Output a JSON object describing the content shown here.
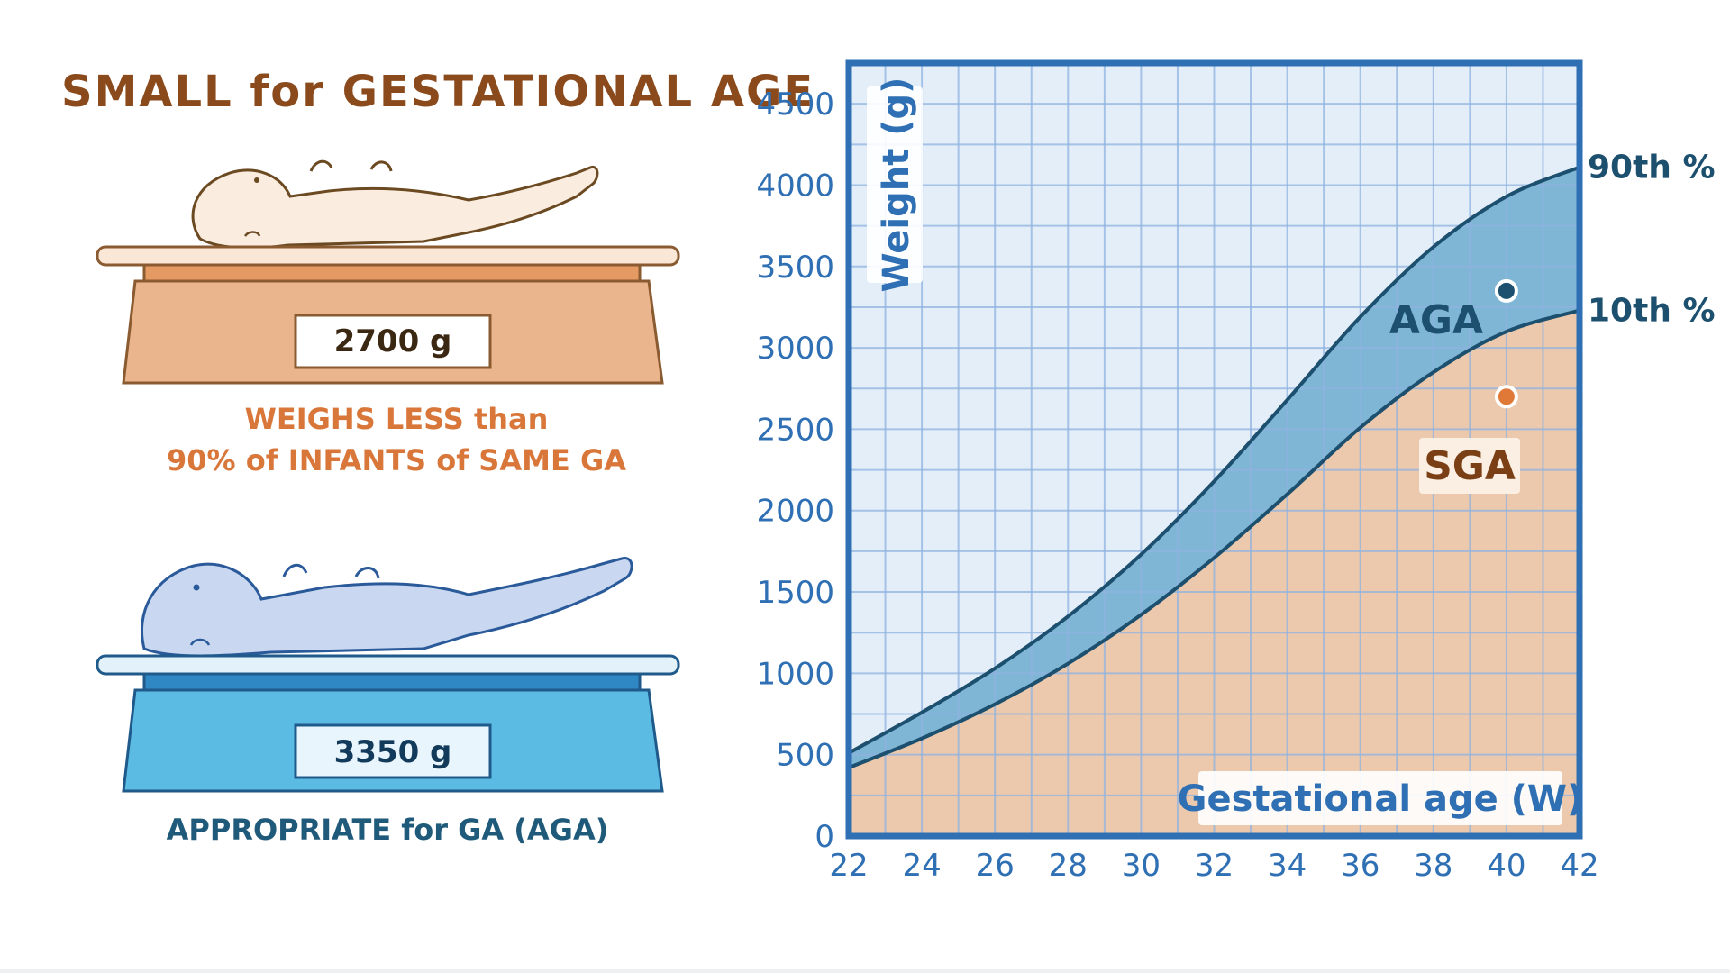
{
  "title": "SMALL for GESTATIONAL AGE",
  "left_panel": {
    "top_infant": {
      "scale_reading": "2700 g",
      "caption_line1": "WEIGHS LESS than",
      "caption_line2": "90% of INFANTS of SAME GA"
    },
    "bottom_infant": {
      "scale_reading": "3350 g",
      "caption": "APPROPRIATE for GA (AGA)"
    }
  },
  "colors": {
    "title": "#8a4a1c",
    "caption_orange": "#d9773a",
    "caption_navy": "#1f5a7a",
    "axis_blue": "#2f6fb3",
    "sga_fill": "#ecc9ad",
    "aga_fill": "#7fb6d6",
    "upper_fill": "#e4eef9",
    "curve": "#1d4f6e",
    "grid": "#8fb3e0",
    "point_aga": "#1d4f6e",
    "point_sga": "#e07838"
  },
  "chart_data": {
    "type": "area",
    "xlabel": "Gestational age (W)",
    "ylabel": "Weight (g)",
    "xlim": [
      22,
      42
    ],
    "ylim": [
      0,
      4750
    ],
    "x_ticks": [
      "22",
      "24",
      "26",
      "28",
      "30",
      "32",
      "34",
      "36",
      "38",
      "40",
      "42"
    ],
    "y_ticks": [
      "0",
      "500",
      "1000",
      "1500",
      "2000",
      "2500",
      "3000",
      "3500",
      "4000",
      "4500"
    ],
    "grid": true,
    "x": [
      22,
      24,
      26,
      28,
      30,
      32,
      34,
      36,
      38,
      40,
      42
    ],
    "series": [
      {
        "name": "90th %",
        "values": [
          510,
          760,
          1030,
          1350,
          1730,
          2180,
          2680,
          3190,
          3620,
          3930,
          4110
        ]
      },
      {
        "name": "10th %",
        "values": [
          420,
          600,
          810,
          1060,
          1360,
          1710,
          2100,
          2510,
          2850,
          3100,
          3230
        ]
      }
    ],
    "region_labels": [
      {
        "label": "AGA"
      },
      {
        "label": "SGA"
      }
    ],
    "points": [
      {
        "x": 40,
        "y": 3350,
        "group": "AGA"
      },
      {
        "x": 40,
        "y": 2700,
        "group": "SGA"
      }
    ]
  }
}
